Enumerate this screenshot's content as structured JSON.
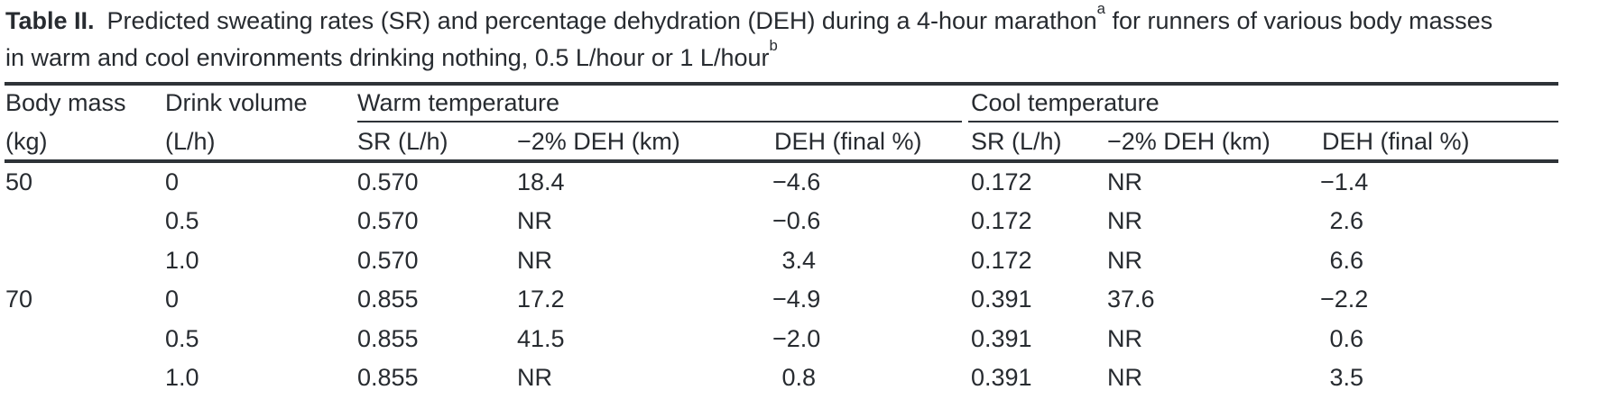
{
  "caption": {
    "label": "Table II.",
    "line1_text": "Predicted sweating rates (SR) and percentage dehydration (DEH) during a 4-hour marathon",
    "line1_sup": "a",
    "line1_rest": " for runners of various body masses",
    "line2_text": "in warm and cool environments drinking nothing, 0.5 L/hour or 1 L/hour",
    "line2_sup": "b"
  },
  "header": {
    "body_mass": "Body mass",
    "body_mass_unit": "(kg)",
    "drink_volume": "Drink volume",
    "drink_volume_unit": "(L/h)",
    "warm_group": "Warm temperature",
    "cool_group": "Cool temperature",
    "sr": "SR (L/h)",
    "deh_km": "−2% DEH (km)",
    "deh_final": "DEH (final %)"
  },
  "rows": [
    {
      "body_mass": "50",
      "drink_volume": "0",
      "warm": {
        "sr": "0.570",
        "deh_km": "18.4",
        "deh_final": "−4.6"
      },
      "cool": {
        "sr": "0.172",
        "deh_km": "NR",
        "deh_final": "−1.4"
      }
    },
    {
      "body_mass": "",
      "drink_volume": "0.5",
      "warm": {
        "sr": "0.570",
        "deh_km": "NR",
        "deh_final": "−0.6"
      },
      "cool": {
        "sr": "0.172",
        "deh_km": "NR",
        "deh_final": "2.6"
      }
    },
    {
      "body_mass": "",
      "drink_volume": "1.0",
      "warm": {
        "sr": "0.570",
        "deh_km": "NR",
        "deh_final": "3.4"
      },
      "cool": {
        "sr": "0.172",
        "deh_km": "NR",
        "deh_final": "6.6"
      }
    },
    {
      "body_mass": "70",
      "drink_volume": "0",
      "warm": {
        "sr": "0.855",
        "deh_km": "17.2",
        "deh_final": "−4.9"
      },
      "cool": {
        "sr": "0.391",
        "deh_km": "37.6",
        "deh_final": "−2.2"
      }
    },
    {
      "body_mass": "",
      "drink_volume": "0.5",
      "warm": {
        "sr": "0.855",
        "deh_km": "41.5",
        "deh_final": "−2.0"
      },
      "cool": {
        "sr": "0.391",
        "deh_km": "NR",
        "deh_final": "0.6"
      }
    },
    {
      "body_mass": "",
      "drink_volume": "1.0",
      "warm": {
        "sr": "0.855",
        "deh_km": "NR",
        "deh_final": "0.8"
      },
      "cool": {
        "sr": "0.391",
        "deh_km": "NR",
        "deh_final": "3.5"
      }
    }
  ],
  "colors": {
    "background": "#ffffff",
    "text": "#272b30",
    "rule": "#2e3338"
  }
}
